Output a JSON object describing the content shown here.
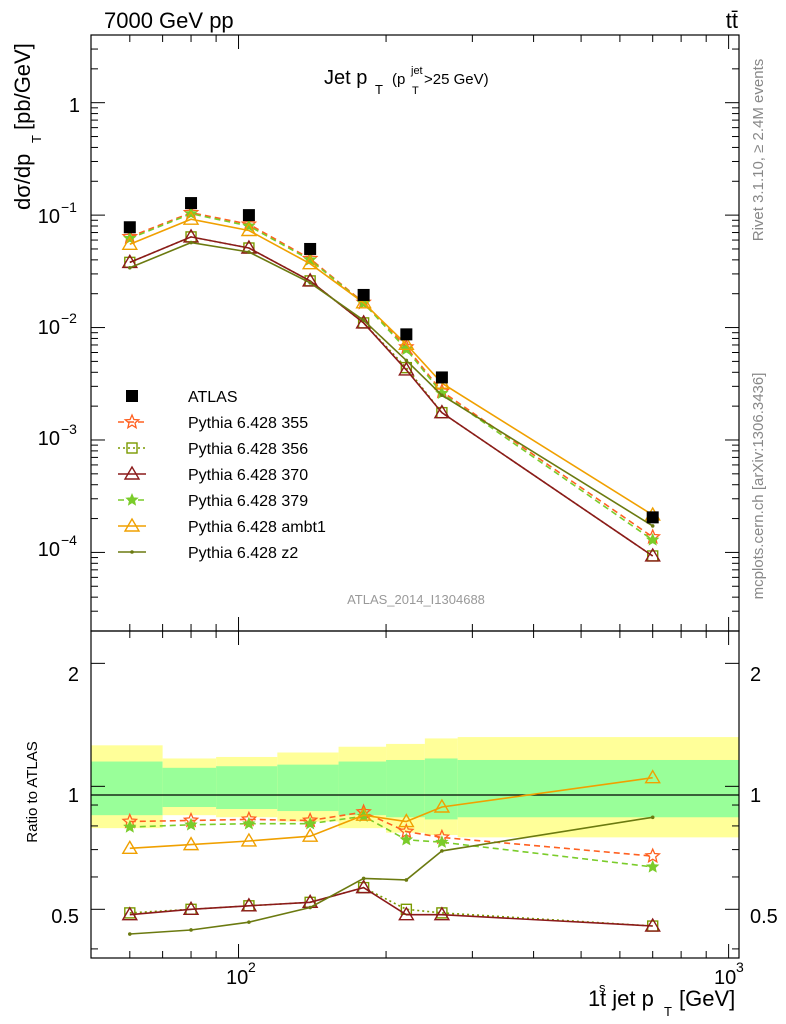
{
  "header": {
    "left_title": "7000 GeV pp",
    "right_title": "tt̄",
    "plot_title_main": "Jet p",
    "plot_title_sub": "T",
    "plot_title_paren": "(p",
    "plot_title_paren_sub": "T",
    "plot_title_paren_sup": "jet",
    "plot_title_cut": ">25 GeV)"
  },
  "side_text": {
    "rivet": "Rivet 3.1.10, ≥ 2.4M events",
    "mcplots": "mcplots.cern.ch [arXiv:1306.3436]"
  },
  "watermark": "ATLAS_2014_I1304688",
  "axes": {
    "ylabel_main": "dσ/dp",
    "ylabel_main_sub": "T",
    "ylabel_main_unit": "[pb/GeV]",
    "ylabel_ratio": "Ratio to ATLAS",
    "xlabel_pre": "1",
    "xlabel_sup": "s",
    "xlabel_mid": "t jet p",
    "xlabel_sub": "T",
    "xlabel_unit": "[GeV]",
    "x_tick_labels": [
      "10",
      "10"
    ],
    "x_tick_sups": [
      "2",
      "3"
    ],
    "y_main_tick_labels": [
      {
        "base": "1",
        "exp": ""
      },
      {
        "base": "10",
        "exp": "−1"
      },
      {
        "base": "10",
        "exp": "−2"
      },
      {
        "base": "10",
        "exp": "−3"
      },
      {
        "base": "10",
        "exp": "−4"
      }
    ],
    "y_ratio_tick_labels": [
      "2",
      "1",
      "0.5"
    ]
  },
  "legend": {
    "entries": [
      {
        "label": "ATLAS",
        "color": "#000000",
        "marker": "square-filled",
        "line": "none"
      },
      {
        "label": "Pythia 6.428 355",
        "color": "#ff6020",
        "marker": "star-open",
        "line": "dashed"
      },
      {
        "label": "Pythia 6.428 356",
        "color": "#7a9a00",
        "marker": "square-open",
        "line": "dotted"
      },
      {
        "label": "Pythia 6.428 370",
        "color": "#8b1a1a",
        "marker": "triangle-open",
        "line": "solid"
      },
      {
        "label": "Pythia 6.428 379",
        "color": "#7acc2a",
        "marker": "star-filled",
        "line": "dashed"
      },
      {
        "label": "Pythia 6.428 ambt1",
        "color": "#f0a000",
        "marker": "triangle-open",
        "line": "solid"
      },
      {
        "label": "Pythia 6.428 z2",
        "color": "#6b7a10",
        "marker": "dot",
        "line": "solid"
      }
    ]
  },
  "chart_data": [
    {
      "type": "line",
      "title": "Jet pT (pT jet >25 GeV)",
      "xlabel": "1st jet pT [GeV]",
      "ylabel": "dσ/dpT [pb/GeV]",
      "xscale": "log",
      "yscale": "log",
      "xlim": [
        50,
        1050
      ],
      "ylim": [
        2e-05,
        4
      ],
      "x": [
        60,
        80,
        105,
        140,
        180,
        220,
        260,
        700
      ],
      "data_points": {
        "name": "ATLAS",
        "y": [
          0.078,
          0.128,
          0.1,
          0.05,
          0.0195,
          0.0087,
          0.0036,
          0.000205
        ]
      },
      "series": [
        {
          "name": "Pythia 6.428 355",
          "values": [
            0.064,
            0.105,
            0.083,
            0.041,
            0.0167,
            0.0067,
            0.0027,
            0.000137
          ]
        },
        {
          "name": "Pythia 6.428 356",
          "values": [
            0.038,
            0.064,
            0.051,
            0.026,
            0.011,
            0.0044,
            0.00175,
            9.3e-05
          ]
        },
        {
          "name": "Pythia 6.428 370",
          "values": [
            0.038,
            0.064,
            0.051,
            0.026,
            0.011,
            0.0042,
            0.00175,
            9.3e-05
          ]
        },
        {
          "name": "Pythia 6.428 379",
          "values": [
            0.062,
            0.103,
            0.08,
            0.04,
            0.0165,
            0.0064,
            0.0026,
            0.000129
          ]
        },
        {
          "name": "Pythia 6.428 ambt1",
          "values": [
            0.055,
            0.092,
            0.073,
            0.037,
            0.0166,
            0.0071,
            0.0032,
            0.000215
          ]
        },
        {
          "name": "Pythia 6.428 z2",
          "values": [
            0.034,
            0.057,
            0.047,
            0.025,
            0.0116,
            0.0051,
            0.0025,
            0.000172
          ]
        }
      ],
      "legend_position": "left-middle"
    },
    {
      "type": "line",
      "ylabel": "Ratio to ATLAS",
      "xlabel": "1st jet pT [GeV]",
      "xscale": "log",
      "xlim": [
        50,
        1050
      ],
      "ylim": [
        0.38,
        2.4
      ],
      "x": [
        60,
        80,
        105,
        140,
        180,
        220,
        260,
        700
      ],
      "bins": [
        [
          50,
          70
        ],
        [
          70,
          90
        ],
        [
          90,
          120
        ],
        [
          120,
          160
        ],
        [
          160,
          200
        ],
        [
          200,
          240
        ],
        [
          240,
          280
        ],
        [
          280,
          1050
        ]
      ],
      "band_inner": [
        [
          0.85,
          1.15
        ],
        [
          0.89,
          1.11
        ],
        [
          0.88,
          1.12
        ],
        [
          0.87,
          1.13
        ],
        [
          0.85,
          1.15
        ],
        [
          0.84,
          1.16
        ],
        [
          0.83,
          1.17
        ],
        [
          0.84,
          1.16
        ]
      ],
      "band_outer": [
        [
          0.79,
          1.26
        ],
        [
          0.85,
          1.17
        ],
        [
          0.84,
          1.18
        ],
        [
          0.82,
          1.21
        ],
        [
          0.79,
          1.25
        ],
        [
          0.77,
          1.27
        ],
        [
          0.76,
          1.31
        ],
        [
          0.75,
          1.32
        ]
      ],
      "series": [
        {
          "name": "Pythia 6.428 355",
          "values": [
            0.82,
            0.825,
            0.83,
            0.825,
            0.865,
            0.775,
            0.75,
            0.675
          ]
        },
        {
          "name": "Pythia 6.428 356",
          "values": [
            0.49,
            0.5,
            0.51,
            0.52,
            0.565,
            0.5,
            0.49,
            0.455
          ]
        },
        {
          "name": "Pythia 6.428 370",
          "values": [
            0.485,
            0.5,
            0.51,
            0.52,
            0.565,
            0.485,
            0.485,
            0.455
          ]
        },
        {
          "name": "Pythia 6.428 379",
          "values": [
            0.795,
            0.805,
            0.81,
            0.81,
            0.845,
            0.74,
            0.73,
            0.635
          ]
        },
        {
          "name": "Pythia 6.428 ambt1",
          "values": [
            0.705,
            0.72,
            0.735,
            0.755,
            0.85,
            0.82,
            0.89,
            1.05
          ]
        },
        {
          "name": "Pythia 6.428 z2",
          "values": [
            0.435,
            0.445,
            0.465,
            0.505,
            0.595,
            0.59,
            0.695,
            0.84
          ]
        }
      ]
    }
  ]
}
